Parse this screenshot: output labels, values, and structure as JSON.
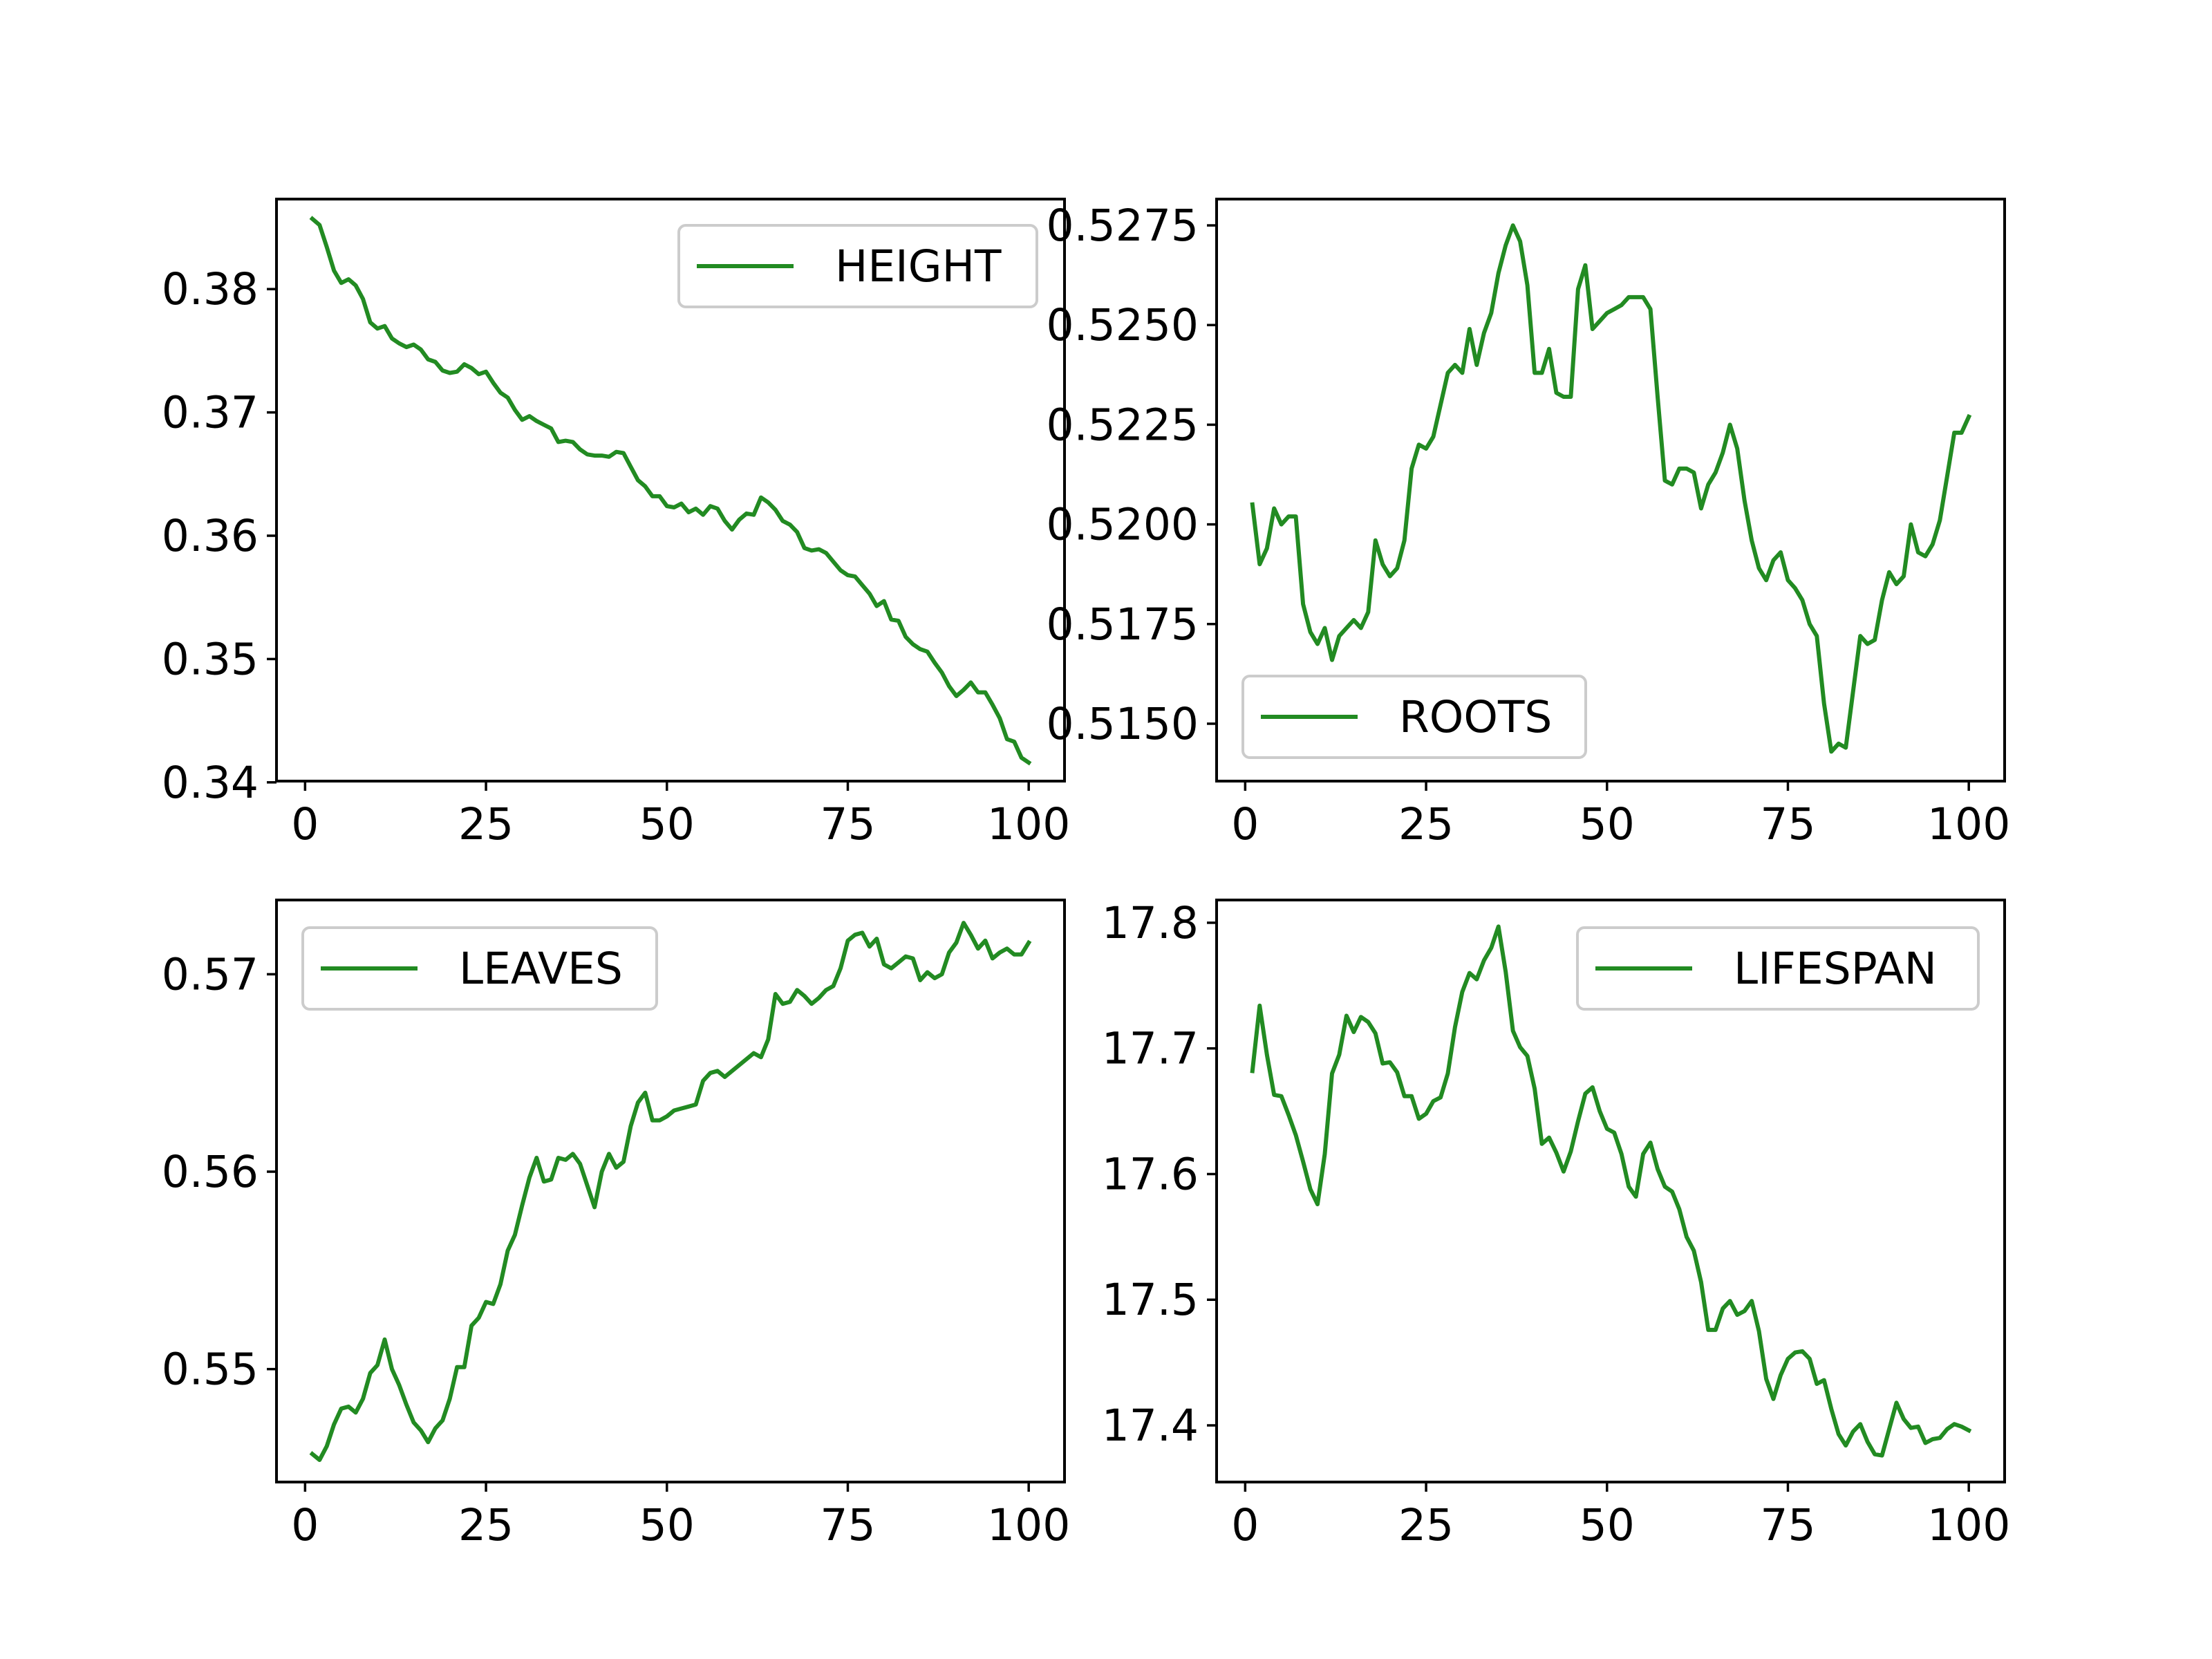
{
  "chart_data": [
    {
      "type": "line",
      "series": [
        {
          "name": "HEIGHT",
          "color": "#228b22"
        }
      ],
      "x": [
        1,
        2,
        3,
        4,
        5,
        6,
        7,
        8,
        9,
        10,
        11,
        12,
        13,
        14,
        15,
        16,
        17,
        18,
        19,
        20,
        21,
        22,
        23,
        24,
        25,
        26,
        27,
        28,
        29,
        30,
        31,
        32,
        33,
        34,
        35,
        36,
        37,
        38,
        39,
        40,
        41,
        42,
        43,
        44,
        45,
        46,
        47,
        48,
        49,
        50,
        51,
        52,
        53,
        54,
        55,
        56,
        57,
        58,
        59,
        60,
        61,
        62,
        63,
        64,
        65,
        66,
        67,
        68,
        69,
        70,
        71,
        72,
        73,
        74,
        75,
        76,
        77,
        78,
        79,
        80,
        81,
        82,
        83,
        84,
        85,
        86,
        87,
        88,
        89,
        90,
        91,
        92,
        93,
        94,
        95,
        96,
        97,
        98,
        99,
        100
      ],
      "y": [
        0.3857,
        0.3852,
        0.3834,
        0.3815,
        0.3805,
        0.3808,
        0.3803,
        0.3792,
        0.3773,
        0.3768,
        0.377,
        0.376,
        0.3756,
        0.3753,
        0.3755,
        0.3751,
        0.3743,
        0.3741,
        0.3734,
        0.3732,
        0.3733,
        0.3739,
        0.3736,
        0.3731,
        0.3733,
        0.3724,
        0.3716,
        0.3712,
        0.3702,
        0.3694,
        0.3697,
        0.3693,
        0.369,
        0.3687,
        0.3676,
        0.3677,
        0.3676,
        0.367,
        0.3666,
        0.3665,
        0.3665,
        0.3664,
        0.3668,
        0.3667,
        0.3656,
        0.3645,
        0.364,
        0.3632,
        0.3632,
        0.3624,
        0.3623,
        0.3626,
        0.3619,
        0.3622,
        0.3617,
        0.3624,
        0.3622,
        0.3612,
        0.3605,
        0.3613,
        0.3618,
        0.3617,
        0.3631,
        0.3627,
        0.3621,
        0.3612,
        0.3609,
        0.3603,
        0.359,
        0.3588,
        0.3589,
        0.3586,
        0.3579,
        0.3572,
        0.3568,
        0.3567,
        0.356,
        0.3553,
        0.3543,
        0.3547,
        0.3532,
        0.3531,
        0.3518,
        0.3512,
        0.3508,
        0.3506,
        0.3497,
        0.3489,
        0.3478,
        0.347,
        0.3475,
        0.3481,
        0.3473,
        0.3473,
        0.3463,
        0.3452,
        0.3435,
        0.3433,
        0.342,
        0.3416
      ],
      "xlim": [
        -3.95,
        104.95
      ],
      "ylim": [
        0.3401,
        0.3873
      ],
      "xticks": [
        0,
        25,
        50,
        75,
        100
      ],
      "xtick_labels": [
        "0",
        "25",
        "50",
        "75",
        "100"
      ],
      "yticks": [
        0.34,
        0.35,
        0.36,
        0.37,
        0.38
      ],
      "ytick_labels": [
        "0.34",
        "0.35",
        "0.36",
        "0.37",
        "0.38"
      ],
      "legend": "top-right"
    },
    {
      "type": "line",
      "series": [
        {
          "name": "ROOTS",
          "color": "#228b22"
        }
      ],
      "x": [
        1,
        2,
        3,
        4,
        5,
        6,
        7,
        8,
        9,
        10,
        11,
        12,
        13,
        14,
        15,
        16,
        17,
        18,
        19,
        20,
        21,
        22,
        23,
        24,
        25,
        26,
        27,
        28,
        29,
        30,
        31,
        32,
        33,
        34,
        35,
        36,
        37,
        38,
        39,
        40,
        41,
        42,
        43,
        44,
        45,
        46,
        47,
        48,
        49,
        50,
        51,
        52,
        53,
        54,
        55,
        56,
        57,
        58,
        59,
        60,
        61,
        62,
        63,
        64,
        65,
        66,
        67,
        68,
        69,
        70,
        71,
        72,
        73,
        74,
        75,
        76,
        77,
        78,
        79,
        80,
        81,
        82,
        83,
        84,
        85,
        86,
        87,
        88,
        89,
        90,
        91,
        92,
        93,
        94,
        95,
        96,
        97,
        98,
        99,
        100
      ],
      "y": [
        0.5205,
        0.519,
        0.5194,
        0.5204,
        0.52,
        0.5202,
        0.5202,
        0.518,
        0.5173,
        0.517,
        0.5174,
        0.5166,
        0.5172,
        0.5174,
        0.5176,
        0.5174,
        0.5178,
        0.5196,
        0.519,
        0.5187,
        0.5189,
        0.5196,
        0.5214,
        0.522,
        0.5219,
        0.5222,
        0.523,
        0.5238,
        0.524,
        0.5238,
        0.5249,
        0.524,
        0.5248,
        0.5253,
        0.5263,
        0.527,
        0.5275,
        0.5271,
        0.526,
        0.5238,
        0.5238,
        0.5244,
        0.5233,
        0.5232,
        0.5232,
        0.5259,
        0.5265,
        0.5249,
        0.5251,
        0.5253,
        0.5254,
        0.5255,
        0.5257,
        0.5257,
        0.5257,
        0.5254,
        0.5232,
        0.5211,
        0.521,
        0.5214,
        0.5214,
        0.5213,
        0.5204,
        0.521,
        0.5213,
        0.5218,
        0.5225,
        0.5219,
        0.5206,
        0.5196,
        0.5189,
        0.5186,
        0.5191,
        0.5193,
        0.5186,
        0.5184,
        0.5181,
        0.5175,
        0.5172,
        0.5155,
        0.5143,
        0.5145,
        0.5144,
        0.5158,
        0.5172,
        0.517,
        0.5171,
        0.5181,
        0.5188,
        0.5185,
        0.5187,
        0.52,
        0.5193,
        0.5192,
        0.5195,
        0.5201,
        0.5212,
        0.5223,
        0.5223,
        0.5227
      ],
      "xlim": [
        -3.95,
        104.95
      ],
      "ylim": [
        0.51356,
        0.52816
      ],
      "xticks": [
        0,
        25,
        50,
        75,
        100
      ],
      "xtick_labels": [
        "0",
        "25",
        "50",
        "75",
        "100"
      ],
      "yticks": [
        0.515,
        0.5175,
        0.52,
        0.5225,
        0.525,
        0.5275
      ],
      "ytick_labels": [
        "0.5150",
        "0.5175",
        "0.5200",
        "0.5225",
        "0.5250",
        "0.5275"
      ],
      "legend": "bottom-left"
    },
    {
      "type": "line",
      "series": [
        {
          "name": "LEAVES",
          "color": "#228b22"
        }
      ],
      "x": [
        1,
        2,
        3,
        4,
        5,
        6,
        7,
        8,
        9,
        10,
        11,
        12,
        13,
        14,
        15,
        16,
        17,
        18,
        19,
        20,
        21,
        22,
        23,
        24,
        25,
        26,
        27,
        28,
        29,
        30,
        31,
        32,
        33,
        34,
        35,
        36,
        37,
        38,
        39,
        40,
        41,
        42,
        43,
        44,
        45,
        46,
        47,
        48,
        49,
        50,
        51,
        52,
        53,
        54,
        55,
        56,
        57,
        58,
        59,
        60,
        61,
        62,
        63,
        64,
        65,
        66,
        67,
        68,
        69,
        70,
        71,
        72,
        73,
        74,
        75,
        76,
        77,
        78,
        79,
        80,
        81,
        82,
        83,
        84,
        85,
        86,
        87,
        88,
        89,
        90,
        91,
        92,
        93,
        94,
        95,
        96,
        97,
        98,
        99,
        100
      ],
      "y": [
        0.5457,
        0.5454,
        0.5461,
        0.5472,
        0.548,
        0.5481,
        0.5478,
        0.5485,
        0.5498,
        0.5502,
        0.5515,
        0.55,
        0.5492,
        0.5482,
        0.5473,
        0.5469,
        0.5463,
        0.547,
        0.5474,
        0.5485,
        0.5501,
        0.5501,
        0.5522,
        0.5526,
        0.5534,
        0.5533,
        0.5543,
        0.556,
        0.5568,
        0.5583,
        0.5597,
        0.5607,
        0.5595,
        0.5596,
        0.5607,
        0.5606,
        0.5609,
        0.5604,
        0.5593,
        0.5582,
        0.56,
        0.5609,
        0.5602,
        0.5605,
        0.5623,
        0.5635,
        0.564,
        0.5626,
        0.5626,
        0.5628,
        0.5631,
        0.5632,
        0.5633,
        0.5634,
        0.5646,
        0.565,
        0.5651,
        0.5648,
        0.5651,
        0.5654,
        0.5657,
        0.566,
        0.5658,
        0.5667,
        0.569,
        0.5685,
        0.5686,
        0.5692,
        0.5689,
        0.5685,
        0.5688,
        0.5692,
        0.5694,
        0.5703,
        0.5717,
        0.572,
        0.5721,
        0.5714,
        0.5718,
        0.5705,
        0.5703,
        0.5706,
        0.5709,
        0.5708,
        0.5697,
        0.5701,
        0.5698,
        0.57,
        0.5711,
        0.5716,
        0.5726,
        0.572,
        0.5713,
        0.5717,
        0.5708,
        0.5711,
        0.5713,
        0.571,
        0.571,
        0.5716
      ],
      "xlim": [
        -3.95,
        104.95
      ],
      "ylim": [
        0.54428,
        0.57376
      ],
      "xticks": [
        0,
        25,
        50,
        75,
        100
      ],
      "xtick_labels": [
        "0",
        "25",
        "50",
        "75",
        "100"
      ],
      "yticks": [
        0.55,
        0.56,
        0.57
      ],
      "ytick_labels": [
        "0.55",
        "0.56",
        "0.57"
      ],
      "legend": "top-left"
    },
    {
      "type": "line",
      "series": [
        {
          "name": "LIFESPAN",
          "color": "#228b22"
        }
      ],
      "x": [
        1,
        2,
        3,
        4,
        5,
        6,
        7,
        8,
        9,
        10,
        11,
        12,
        13,
        14,
        15,
        16,
        17,
        18,
        19,
        20,
        21,
        22,
        23,
        24,
        25,
        26,
        27,
        28,
        29,
        30,
        31,
        32,
        33,
        34,
        35,
        36,
        37,
        38,
        39,
        40,
        41,
        42,
        43,
        44,
        45,
        46,
        47,
        48,
        49,
        50,
        51,
        52,
        53,
        54,
        55,
        56,
        57,
        58,
        59,
        60,
        61,
        62,
        63,
        64,
        65,
        66,
        67,
        68,
        69,
        70,
        71,
        72,
        73,
        74,
        75,
        76,
        77,
        78,
        79,
        80,
        81,
        82,
        83,
        84,
        85,
        86,
        87,
        88,
        89,
        90,
        91,
        92,
        93,
        94,
        95,
        96,
        97,
        98,
        99,
        100
      ],
      "y": [
        17.682,
        17.734,
        17.695,
        17.663,
        17.662,
        17.647,
        17.631,
        17.61,
        17.588,
        17.576,
        17.616,
        17.68,
        17.695,
        17.726,
        17.713,
        17.725,
        17.721,
        17.712,
        17.688,
        17.689,
        17.681,
        17.662,
        17.662,
        17.644,
        17.648,
        17.658,
        17.661,
        17.68,
        17.717,
        17.745,
        17.76,
        17.755,
        17.77,
        17.78,
        17.797,
        17.761,
        17.714,
        17.701,
        17.694,
        17.668,
        17.624,
        17.629,
        17.617,
        17.602,
        17.618,
        17.642,
        17.664,
        17.669,
        17.65,
        17.636,
        17.633,
        17.616,
        17.59,
        17.582,
        17.616,
        17.625,
        17.604,
        17.59,
        17.586,
        17.572,
        17.55,
        17.539,
        17.514,
        17.476,
        17.476,
        17.493,
        17.499,
        17.488,
        17.491,
        17.499,
        17.475,
        17.437,
        17.421,
        17.44,
        17.453,
        17.458,
        17.459,
        17.453,
        17.433,
        17.436,
        17.413,
        17.393,
        17.384,
        17.395,
        17.401,
        17.387,
        17.377,
        17.376,
        17.397,
        17.418,
        17.405,
        17.398,
        17.399,
        17.386,
        17.389,
        17.39,
        17.397,
        17.401,
        17.399,
        17.396
      ],
      "xlim": [
        -3.95,
        104.95
      ],
      "ylim": [
        17.3549,
        17.8181
      ],
      "xticks": [
        0,
        25,
        50,
        75,
        100
      ],
      "xtick_labels": [
        "0",
        "25",
        "50",
        "75",
        "100"
      ],
      "yticks": [
        17.4,
        17.5,
        17.6,
        17.7,
        17.8
      ],
      "ytick_labels": [
        "17.4",
        "17.5",
        "17.6",
        "17.7",
        "17.8"
      ],
      "legend": "top-right"
    }
  ]
}
